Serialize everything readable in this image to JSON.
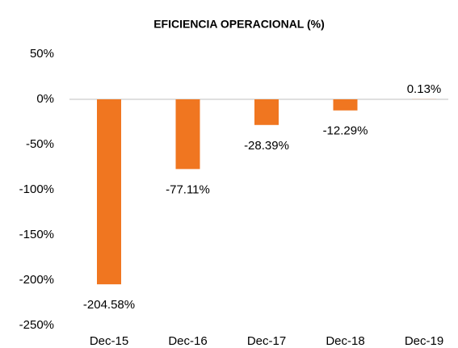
{
  "chart_data": {
    "type": "bar",
    "title": "EFICIENCIA OPERACIONAL (%)",
    "categories": [
      "Dec-15",
      "Dec-16",
      "Dec-17",
      "Dec-18",
      "Dec-19"
    ],
    "values": [
      -204.58,
      -77.11,
      -28.39,
      -12.29,
      0.13
    ],
    "value_labels": [
      "-204.58%",
      "-77.11%",
      "-28.39%",
      "-12.29%",
      "0.13%"
    ],
    "color": "#f07620",
    "ylim": [
      -250,
      50
    ],
    "yticks": [
      {
        "value": -250,
        "label": "-250%"
      },
      {
        "value": -200,
        "label": "-200%"
      },
      {
        "value": -150,
        "label": "-150%"
      },
      {
        "value": -100,
        "label": "-100%"
      },
      {
        "value": -50,
        "label": "-50%"
      },
      {
        "value": 0,
        "label": "0%"
      },
      {
        "value": 50,
        "label": "50%"
      }
    ],
    "grid": false
  }
}
